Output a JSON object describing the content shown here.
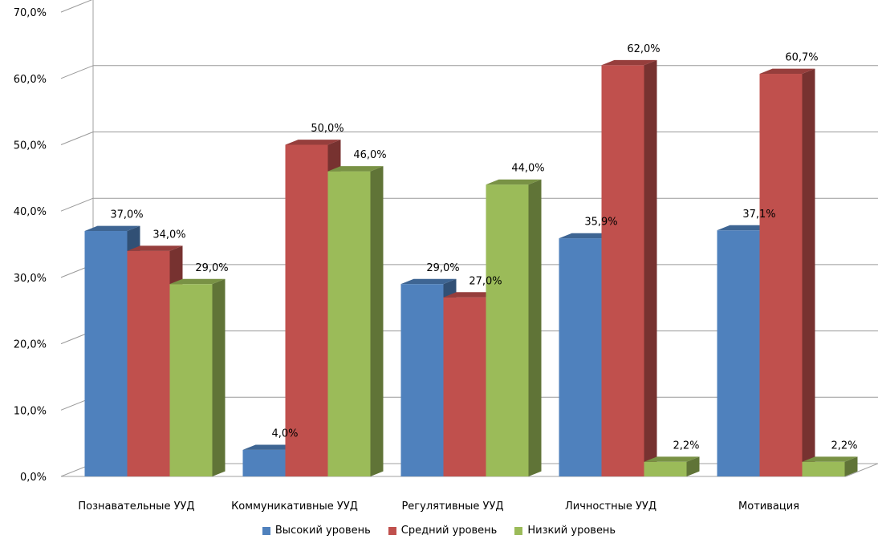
{
  "chart_data": {
    "type": "bar",
    "title": "",
    "xlabel": "",
    "ylabel": "",
    "ylim": [
      0,
      70
    ],
    "y_ticks": [
      "0,0%",
      "10,0%",
      "20,0%",
      "30,0%",
      "40,0%",
      "50,0%",
      "60,0%",
      "70,0%"
    ],
    "grid": true,
    "three_d": true,
    "legend_position": "bottom",
    "categories": [
      "Познавательные УУД",
      "Коммуникативные  УУД",
      "Регулятивные УУД",
      "Личностные УУД",
      "Мотивация"
    ],
    "series": [
      {
        "name": "Высокий уровень",
        "color": "#4f81bd",
        "values": [
          37.0,
          4.0,
          29.0,
          35.9,
          37.1
        ],
        "labels": [
          "37,0%",
          "4,0%",
          "29,0%",
          "35,9%",
          "37,1%"
        ]
      },
      {
        "name": "Средний уровень",
        "color": "#c0504d",
        "values": [
          34.0,
          50.0,
          27.0,
          62.0,
          60.7
        ],
        "labels": [
          "34,0%",
          "50,0%",
          "27,0%",
          "62,0%",
          "60,7%"
        ]
      },
      {
        "name": "Низкий уровень",
        "color": "#9bbb59",
        "values": [
          29.0,
          46.0,
          44.0,
          2.2,
          2.2
        ],
        "labels": [
          "29,0%",
          "46,0%",
          "44,0%",
          "2,2%",
          "2,2%"
        ]
      }
    ]
  }
}
